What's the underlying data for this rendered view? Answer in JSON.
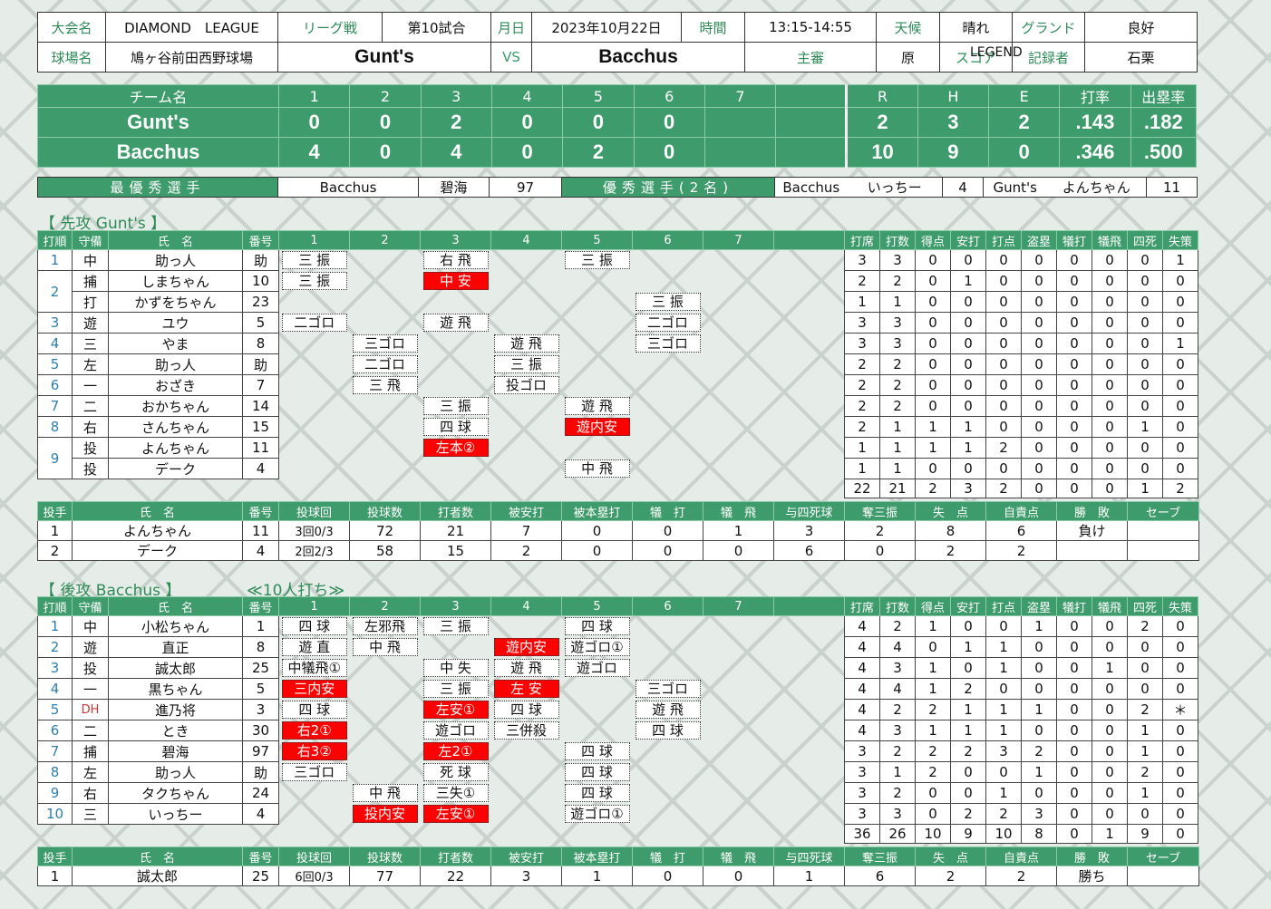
{
  "header": {
    "tournament_label": "大会名",
    "tournament": "DIAMOND　LEAGUE",
    "type_label": "リーグ戦",
    "game_no": "第10試合",
    "date_label": "月日",
    "date": "2023年10月22日",
    "time_label": "時間",
    "time": "13:15-14:55",
    "weather_label": "天候",
    "weather": "晴れ",
    "ground_label": "グランド",
    "ground": "良好",
    "stadium_label": "球場名",
    "stadium": "鳩ヶ谷前田西野球場",
    "team_away": "Gunt's",
    "vs": "VS",
    "team_home": "Bacchus",
    "umpire_label": "主審",
    "umpire": "原",
    "scorer_label": "スコア",
    "scorer": "LEGEND",
    "recorder_label": "記録者",
    "recorder": "石栗"
  },
  "scoreboard": {
    "headers": [
      "チーム名",
      "1",
      "2",
      "3",
      "4",
      "5",
      "6",
      "7",
      "",
      "R",
      "H",
      "E",
      "打率",
      "出塁率"
    ],
    "rows": [
      {
        "team": "Gunt's",
        "innings": [
          "0",
          "0",
          "2",
          "0",
          "0",
          "0",
          "",
          ""
        ],
        "R": "2",
        "H": "3",
        "E": "2",
        "avg": ".143",
        "obp": ".182"
      },
      {
        "team": "Bacchus",
        "innings": [
          "4",
          "0",
          "4",
          "0",
          "2",
          "0",
          "",
          ""
        ],
        "R": "10",
        "H": "9",
        "E": "0",
        "avg": ".346",
        "obp": ".500"
      }
    ]
  },
  "mvp": {
    "mvp_label": "最優秀選手",
    "mvp_team": "Bacchus",
    "mvp_name": "碧海",
    "mvp_no": "97",
    "excellent_label": "優秀選手(2名)",
    "p1_team": "Bacchus",
    "p1_name": "いっちー",
    "p1_no": "4",
    "p2_team": "Gunt's",
    "p2_name": "よんちゃん",
    "p2_no": "11"
  },
  "away": {
    "title": "【 先攻 Gunt's 】",
    "bat_headers": [
      "打順",
      "守備",
      "氏　名",
      "番号",
      "1",
      "2",
      "3",
      "4",
      "5",
      "6",
      "7",
      "",
      "打席",
      "打数",
      "得点",
      "安打",
      "打点",
      "盗塁",
      "犠打",
      "犠飛",
      "四死",
      "失策"
    ],
    "batters": [
      {
        "order": "1",
        "pos": "中",
        "name": "助っ人",
        "no": "助",
        "res": [
          [
            "三 振",
            "o"
          ],
          null,
          [
            "右 飛",
            "o"
          ],
          null,
          [
            "三 振",
            "o"
          ],
          null,
          null,
          null
        ],
        "stats": [
          "3",
          "3",
          "0",
          "0",
          "0",
          "0",
          "0",
          "0",
          "0",
          "1"
        ]
      },
      {
        "order": "2",
        "pos": "捕",
        "name": "しまちゃん",
        "no": "10",
        "res": [
          [
            "三 振",
            "o"
          ],
          null,
          [
            "中 安",
            "h"
          ],
          null,
          null,
          null,
          null,
          null
        ],
        "stats": [
          "2",
          "2",
          "0",
          "1",
          "0",
          "0",
          "0",
          "0",
          "0",
          "0"
        ]
      },
      {
        "order": "",
        "pos": "打",
        "name": "かずをちゃん",
        "no": "23",
        "res": [
          null,
          null,
          null,
          null,
          null,
          [
            "三 振",
            "o"
          ],
          null,
          null
        ],
        "stats": [
          "1",
          "1",
          "0",
          "0",
          "0",
          "0",
          "0",
          "0",
          "0",
          "0"
        ]
      },
      {
        "order": "3",
        "pos": "遊",
        "name": "ユウ",
        "no": "5",
        "res": [
          [
            "二ゴロ",
            "o"
          ],
          null,
          [
            "遊 飛",
            "o"
          ],
          null,
          null,
          [
            "二ゴロ",
            "o"
          ],
          null,
          null
        ],
        "stats": [
          "3",
          "3",
          "0",
          "0",
          "0",
          "0",
          "0",
          "0",
          "0",
          "0"
        ]
      },
      {
        "order": "4",
        "pos": "三",
        "name": "やま",
        "no": "8",
        "res": [
          null,
          [
            "三ゴロ",
            "o"
          ],
          null,
          [
            "遊 飛",
            "o"
          ],
          null,
          [
            "三ゴロ",
            "o"
          ],
          null,
          null
        ],
        "stats": [
          "3",
          "3",
          "0",
          "0",
          "0",
          "0",
          "0",
          "0",
          "0",
          "1"
        ]
      },
      {
        "order": "5",
        "pos": "左",
        "name": "助っ人",
        "no": "助",
        "res": [
          null,
          [
            "二ゴロ",
            "o"
          ],
          null,
          [
            "三 振",
            "o"
          ],
          null,
          null,
          null,
          null
        ],
        "stats": [
          "2",
          "2",
          "0",
          "0",
          "0",
          "0",
          "0",
          "0",
          "0",
          "0"
        ]
      },
      {
        "order": "6",
        "pos": "一",
        "name": "おざき",
        "no": "7",
        "res": [
          null,
          [
            "三 飛",
            "o"
          ],
          null,
          [
            "投ゴロ",
            "o"
          ],
          null,
          null,
          null,
          null
        ],
        "stats": [
          "2",
          "2",
          "0",
          "0",
          "0",
          "0",
          "0",
          "0",
          "0",
          "0"
        ]
      },
      {
        "order": "7",
        "pos": "二",
        "name": "おかちゃん",
        "no": "14",
        "res": [
          null,
          null,
          [
            "三 振",
            "o"
          ],
          null,
          [
            "遊 飛",
            "o"
          ],
          null,
          null,
          null
        ],
        "stats": [
          "2",
          "2",
          "0",
          "0",
          "0",
          "0",
          "0",
          "0",
          "0",
          "0"
        ]
      },
      {
        "order": "8",
        "pos": "右",
        "name": "さんちゃん",
        "no": "15",
        "res": [
          null,
          null,
          [
            "四 球",
            "o"
          ],
          null,
          [
            "遊内安",
            "h"
          ],
          null,
          null,
          null
        ],
        "stats": [
          "2",
          "1",
          "1",
          "1",
          "0",
          "0",
          "0",
          "0",
          "1",
          "0"
        ]
      },
      {
        "order": "9",
        "pos": "投",
        "name": "よんちゃん",
        "no": "11",
        "res": [
          null,
          null,
          [
            "左本②",
            "h"
          ],
          null,
          null,
          null,
          null,
          null
        ],
        "stats": [
          "1",
          "1",
          "1",
          "1",
          "2",
          "0",
          "0",
          "0",
          "0",
          "0"
        ]
      },
      {
        "order": "",
        "pos": "投",
        "name": "デーク",
        "no": "4",
        "res": [
          null,
          null,
          null,
          null,
          [
            "中 飛",
            "o"
          ],
          null,
          null,
          null
        ],
        "stats": [
          "1",
          "1",
          "0",
          "0",
          "0",
          "0",
          "0",
          "0",
          "0",
          "0"
        ]
      }
    ],
    "totals": [
      "22",
      "21",
      "2",
      "3",
      "2",
      "0",
      "0",
      "0",
      "1",
      "2"
    ],
    "pit_headers": [
      "投手",
      "氏　名",
      "番号",
      "投球回",
      "投球数",
      "打者数",
      "被安打",
      "被本塁打",
      "犠　打",
      "犠　飛",
      "与四死球",
      "奪三振",
      "失　点",
      "自責点",
      "勝　敗",
      "セーブ"
    ],
    "pitchers": [
      {
        "order": "1",
        "name": "よんちゃん",
        "no": "11",
        "ip": "3回0/3",
        "np": "72",
        "bf": "21",
        "h": "7",
        "hr": "0",
        "sh": "0",
        "sf": "1",
        "bb": "3",
        "so": "2",
        "r": "8",
        "er": "6",
        "wl": "負け",
        "sv": ""
      },
      {
        "order": "2",
        "name": "デーク",
        "no": "4",
        "ip": "2回2/3",
        "np": "58",
        "bf": "15",
        "h": "2",
        "hr": "0",
        "sh": "0",
        "sf": "0",
        "bb": "6",
        "so": "0",
        "r": "2",
        "er": "2",
        "wl": "",
        "sv": ""
      }
    ]
  },
  "home": {
    "title": "【 後攻 Bacchus 】",
    "note": "≪10人打ち≫",
    "bat_headers": [
      "打順",
      "守備",
      "氏　名",
      "番号",
      "1",
      "2",
      "3",
      "4",
      "5",
      "6",
      "7",
      "",
      "打席",
      "打数",
      "得点",
      "安打",
      "打点",
      "盗塁",
      "犠打",
      "犠飛",
      "四死",
      "失策"
    ],
    "batters": [
      {
        "order": "1",
        "pos": "中",
        "name": "小松ちゃん",
        "no": "1",
        "res": [
          [
            "四 球",
            "o"
          ],
          [
            "左邪飛",
            "o"
          ],
          [
            "三 振",
            "o"
          ],
          null,
          [
            "四 球",
            "o"
          ],
          null,
          null,
          null
        ],
        "stats": [
          "4",
          "2",
          "1",
          "0",
          "0",
          "1",
          "0",
          "0",
          "2",
          "0"
        ]
      },
      {
        "order": "2",
        "pos": "遊",
        "name": "直正",
        "no": "8",
        "res": [
          [
            "遊 直",
            "o"
          ],
          [
            "中 飛",
            "o"
          ],
          null,
          [
            "遊内安",
            "h"
          ],
          [
            "遊ゴロ①",
            "o"
          ],
          null,
          null,
          null
        ],
        "stats": [
          "4",
          "4",
          "0",
          "1",
          "1",
          "0",
          "0",
          "0",
          "0",
          "0"
        ]
      },
      {
        "order": "3",
        "pos": "投",
        "name": "誠太郎",
        "no": "25",
        "res": [
          [
            "中犠飛①",
            "o"
          ],
          null,
          [
            "中 失",
            "o"
          ],
          [
            "遊 飛",
            "o"
          ],
          [
            "遊ゴロ",
            "o"
          ],
          null,
          null,
          null
        ],
        "stats": [
          "4",
          "3",
          "1",
          "0",
          "1",
          "0",
          "0",
          "1",
          "0",
          "0"
        ]
      },
      {
        "order": "4",
        "pos": "一",
        "name": "黒ちゃん",
        "no": "5",
        "res": [
          [
            "三内安",
            "h"
          ],
          null,
          [
            "三 振",
            "o"
          ],
          [
            "左 安",
            "h"
          ],
          null,
          [
            "三ゴロ",
            "o"
          ],
          null,
          null
        ],
        "stats": [
          "4",
          "4",
          "1",
          "2",
          "0",
          "0",
          "0",
          "0",
          "0",
          "0"
        ]
      },
      {
        "order": "5",
        "pos": "DH",
        "name": "進乃将",
        "no": "3",
        "res": [
          [
            "四 球",
            "o"
          ],
          null,
          [
            "左安①",
            "h"
          ],
          [
            "四 球",
            "o"
          ],
          null,
          [
            "遊 飛",
            "o"
          ],
          null,
          null
        ],
        "stats": [
          "4",
          "2",
          "2",
          "1",
          "1",
          "1",
          "0",
          "0",
          "2",
          "＊"
        ]
      },
      {
        "order": "6",
        "pos": "二",
        "name": "とき",
        "no": "30",
        "res": [
          [
            "右2①",
            "h"
          ],
          null,
          [
            "遊ゴロ",
            "o"
          ],
          [
            "三併殺",
            "o"
          ],
          null,
          [
            "四 球",
            "o"
          ],
          null,
          null
        ],
        "stats": [
          "4",
          "3",
          "1",
          "1",
          "1",
          "0",
          "0",
          "0",
          "1",
          "0"
        ]
      },
      {
        "order": "7",
        "pos": "捕",
        "name": "碧海",
        "no": "97",
        "res": [
          [
            "右3②",
            "h"
          ],
          null,
          [
            "左2①",
            "h"
          ],
          null,
          [
            "四 球",
            "o"
          ],
          null,
          null,
          null
        ],
        "stats": [
          "3",
          "2",
          "2",
          "2",
          "3",
          "2",
          "0",
          "0",
          "1",
          "0"
        ]
      },
      {
        "order": "8",
        "pos": "左",
        "name": "助っ人",
        "no": "助",
        "res": [
          [
            "三ゴロ",
            "o"
          ],
          null,
          [
            "死 球",
            "o"
          ],
          null,
          [
            "四 球",
            "o"
          ],
          null,
          null,
          null
        ],
        "stats": [
          "3",
          "1",
          "2",
          "0",
          "0",
          "1",
          "0",
          "0",
          "2",
          "0"
        ]
      },
      {
        "order": "9",
        "pos": "右",
        "name": "タクちゃん",
        "no": "24",
        "res": [
          null,
          [
            "中 飛",
            "o"
          ],
          [
            "三失①",
            "o"
          ],
          null,
          [
            "四 球",
            "o"
          ],
          null,
          null,
          null
        ],
        "stats": [
          "3",
          "2",
          "0",
          "0",
          "1",
          "0",
          "0",
          "0",
          "1",
          "0"
        ]
      },
      {
        "order": "10",
        "pos": "三",
        "name": "いっちー",
        "no": "4",
        "res": [
          null,
          [
            "投内安",
            "h"
          ],
          [
            "左安①",
            "h"
          ],
          null,
          [
            "遊ゴロ①",
            "o"
          ],
          null,
          null,
          null
        ],
        "stats": [
          "3",
          "3",
          "0",
          "2",
          "2",
          "3",
          "0",
          "0",
          "0",
          "0"
        ]
      }
    ],
    "totals": [
      "36",
      "26",
      "10",
      "9",
      "10",
      "8",
      "0",
      "1",
      "9",
      "0"
    ],
    "pit_headers": [
      "投手",
      "氏　名",
      "番号",
      "投球回",
      "投球数",
      "打者数",
      "被安打",
      "被本塁打",
      "犠　打",
      "犠　飛",
      "与四死球",
      "奪三振",
      "失　点",
      "自責点",
      "勝　敗",
      "セーブ"
    ],
    "pitchers": [
      {
        "order": "1",
        "name": "誠太郎",
        "no": "25",
        "ip": "6回0/3",
        "np": "77",
        "bf": "22",
        "h": "3",
        "hr": "1",
        "sh": "0",
        "sf": "0",
        "bb": "1",
        "so": "6",
        "r": "2",
        "er": "2",
        "wl": "勝ち",
        "sv": ""
      }
    ]
  }
}
